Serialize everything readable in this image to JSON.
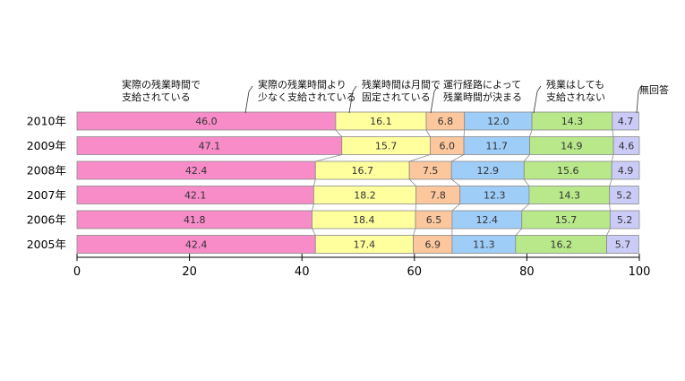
{
  "chart_data": {
    "type": "bar",
    "orientation": "horizontal",
    "stacked": true,
    "categories": [
      "2010年",
      "2009年",
      "2008年",
      "2007年",
      "2006年",
      "2005年"
    ],
    "series": [
      {
        "name": "実際の残業時間で支給されている",
        "legend_lines": [
          "実際の残業時間で",
          "支給されている"
        ],
        "color": "#f78cc8",
        "values": [
          46.0,
          47.1,
          42.4,
          42.1,
          41.8,
          42.4
        ],
        "labels": [
          "46.0",
          "47.1",
          "42.4",
          "42.1",
          "41.8",
          "42.4"
        ]
      },
      {
        "name": "実際の残業時間より少なく支給されている",
        "legend_lines": [
          "実際の残業時間より",
          "少なく支給されている"
        ],
        "color": "#ffff9e",
        "values": [
          16.1,
          15.7,
          16.7,
          18.2,
          18.4,
          17.4
        ],
        "labels": [
          "16.1",
          "15.7",
          "16.7",
          "18.2",
          "18.4",
          "17.4"
        ]
      },
      {
        "name": "残業時間は月間で固定されている",
        "legend_lines": [
          "残業時間は月間で",
          "固定されている"
        ],
        "color": "#fcc79c",
        "values": [
          6.8,
          6.0,
          7.5,
          7.8,
          6.5,
          6.9
        ],
        "labels": [
          "6.8",
          "6.0",
          "7.5",
          "7.8",
          "6.5",
          "6.9"
        ]
      },
      {
        "name": "運行経路によって残業時間が決まる",
        "legend_lines": [
          "運行経路によって",
          "残業時間が決まる"
        ],
        "color": "#9ecdf8",
        "values": [
          12.0,
          11.7,
          12.9,
          12.3,
          12.4,
          11.3
        ],
        "labels": [
          "12.0",
          "11.7",
          "12.9",
          "12.3",
          "12.4",
          "11.3"
        ]
      },
      {
        "name": "残業はしても支給されない",
        "legend_lines": [
          "残業はしても",
          "支給されない"
        ],
        "color": "#b8e88a",
        "values": [
          14.3,
          14.9,
          15.6,
          14.3,
          15.7,
          16.2
        ],
        "labels": [
          "14.3",
          "14.9",
          "15.6",
          "14.3",
          "15.7",
          "16.2"
        ]
      },
      {
        "name": "無回答",
        "legend_lines": [
          "無回答"
        ],
        "color": "#cbcbf8",
        "values": [
          4.7,
          4.6,
          4.9,
          5.2,
          5.2,
          5.7
        ],
        "labels": [
          "4.7",
          "4.6",
          "4.9",
          "5.2",
          "5.2",
          "5.7"
        ]
      }
    ],
    "xlim": [
      0,
      100
    ],
    "xticks": [
      "0",
      "20",
      "40",
      "60",
      "80",
      "100"
    ],
    "title": "",
    "xlabel": "",
    "ylabel": "",
    "grid": false,
    "legend_position": "top"
  }
}
